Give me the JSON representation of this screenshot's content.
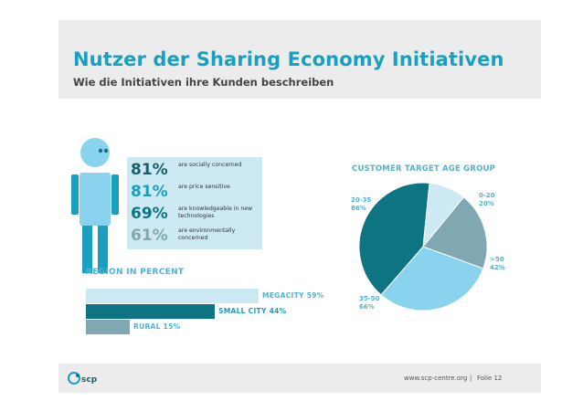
{
  "header": {
    "title": "Nutzer der Sharing Economy Initiativen",
    "subtitle": "Wie die Initiativen ihre Kunden beschreiben"
  },
  "colors": {
    "accent": "#1aa0bf",
    "dark_teal": "#0e7482",
    "light_blue": "#89d3ee",
    "pale_blue": "#cde9f4",
    "grey_blue": "#7fa8b2",
    "light_section": "#4fb3d6"
  },
  "stats": [
    {
      "pct": "81%",
      "text": "are socially concerned",
      "color": "#1a5f6b"
    },
    {
      "pct": "81%",
      "text": "are price sensitive",
      "color": "#1aa0bf"
    },
    {
      "pct": "69%",
      "text": "are knowledgeable in new technologies",
      "color": "#0e7482"
    },
    {
      "pct": "61%",
      "text": "are environmentally concerned",
      "color": "#7fa8b2"
    }
  ],
  "region": {
    "title": "REGION IN PERCENT",
    "bars": [
      {
        "label": "MEGACITY 59%",
        "value": 59,
        "color": "#cde9f4",
        "text_color": "#4fb3d6"
      },
      {
        "label": "SMALL CITY 44%",
        "value": 44,
        "color": "#0e7482",
        "text_color": "#1aa0bf"
      },
      {
        "label": "RURAL 15%",
        "value": 15,
        "color": "#7fa8b2",
        "text_color": "#4fb3d6"
      }
    ]
  },
  "chart_data": {
    "type": "pie",
    "title": "CUSTOMER TARGET AGE GROUP",
    "slices": [
      {
        "label": "0-20",
        "value": 20,
        "display": "20%",
        "color": "#cde9f4"
      },
      {
        "label": ">50",
        "value": 42,
        "display": "42%",
        "color": "#7fa8b2"
      },
      {
        "label": "35-50",
        "value": 66,
        "display": "66%",
        "color": "#89d3ee"
      },
      {
        "label": "20-35",
        "value": 86,
        "display": "86%",
        "color": "#0e7482"
      }
    ]
  },
  "footer": {
    "logo_text": "scp",
    "url": "www.scp-centre.org",
    "separator": "|",
    "page": "Folie  12"
  }
}
